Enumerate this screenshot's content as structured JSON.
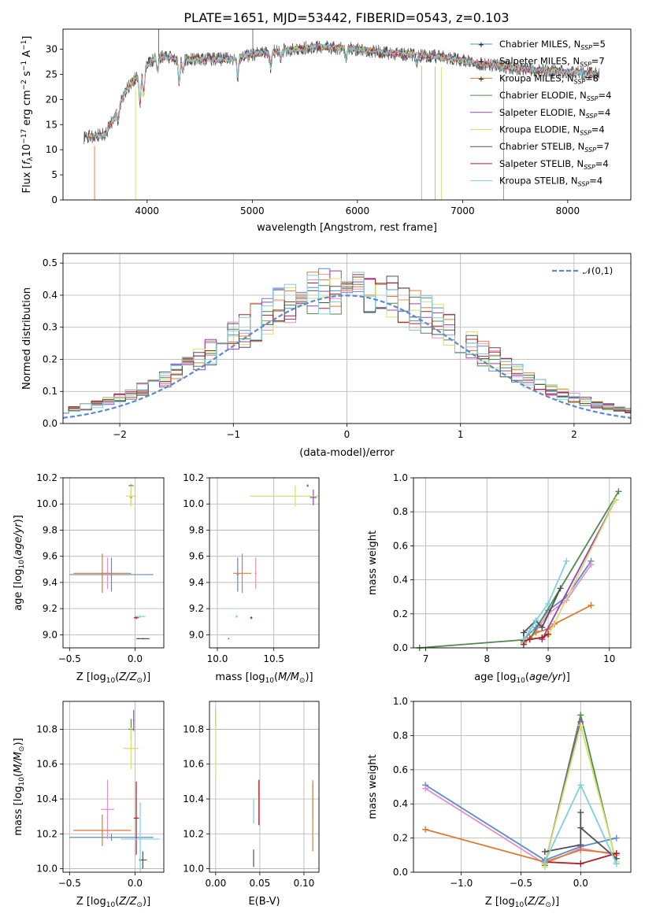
{
  "title": "PLATE=1651, MJD=53442, FIBERID=0543, z=0.103",
  "models": [
    {
      "label": "Chabrier MILES, N$_{SSP}$=5",
      "text": "Chabrier MILES, N",
      "sup": "SSP",
      "tail": "=5",
      "color": "#5a8ad0"
    },
    {
      "label": "Salpeter MILES, N$_{SSP}$=7",
      "text": "Salpeter MILES, N",
      "sup": "SSP",
      "tail": "=7",
      "color": "#e88fc6"
    },
    {
      "label": "Kroupa MILES, N$_{SSP}$=8",
      "text": "Kroupa MILES, N",
      "sup": "SSP",
      "tail": "=8",
      "color": "#e07a30"
    },
    {
      "label": "Chabrier ELODIE, N$_{SSP}$=4",
      "text": "Chabrier ELODIE, N",
      "sup": "SSP",
      "tail": "=4",
      "color": "#4f8a4f"
    },
    {
      "label": "Salpeter ELODIE, N$_{SSP}$=4",
      "text": "Salpeter ELODIE, N",
      "sup": "SSP",
      "tail": "=4",
      "color": "#9a3fbf"
    },
    {
      "label": "Kroupa ELODIE, N$_{SSP}$=4",
      "text": "Kroupa ELODIE, N",
      "sup": "SSP",
      "tail": "=4",
      "color": "#d4e06a"
    },
    {
      "label": "Chabrier STELIB, N$_{SSP}$=7",
      "text": "Chabrier STELIB, N",
      "sup": "SSP",
      "tail": "=7",
      "color": "#505050"
    },
    {
      "label": "Salpeter STELIB, N$_{SSP}$=4",
      "text": "Salpeter STELIB, N",
      "sup": "SSP",
      "tail": "=4",
      "color": "#b02020"
    },
    {
      "label": "Kroupa STELIB, N$_{SSP}$=4",
      "text": "Kroupa STELIB, N",
      "sup": "SSP",
      "tail": "=4",
      "color": "#7fd0dc"
    }
  ],
  "chart_data": [
    {
      "id": "spectrum",
      "type": "line",
      "xlabel": "wavelength [Angstrom, rest frame]",
      "ylabel": "Flux [f_λ 10^-17 erg cm^-2 s^-1 A^-1]",
      "xlim": [
        3200,
        8600
      ],
      "ylim": [
        0,
        34
      ],
      "xticks": [
        4000,
        5000,
        6000,
        7000,
        8000
      ],
      "yticks": [
        0,
        5,
        10,
        15,
        20,
        25,
        30
      ],
      "grid": false,
      "legend": "right",
      "continuum": [
        [
          3400,
          12.5
        ],
        [
          3600,
          13
        ],
        [
          3700,
          17
        ],
        [
          3800,
          22
        ],
        [
          3950,
          25.5
        ],
        [
          4000,
          27
        ],
        [
          4100,
          28.5
        ],
        [
          4400,
          28
        ],
        [
          4800,
          28
        ],
        [
          5000,
          29
        ],
        [
          5200,
          29.5
        ],
        [
          5600,
          30.5
        ],
        [
          6000,
          30
        ],
        [
          6400,
          29
        ],
        [
          6800,
          28.5
        ],
        [
          7200,
          27
        ],
        [
          7600,
          26
        ],
        [
          8000,
          25.5
        ],
        [
          8300,
          25
        ]
      ],
      "absorption_lines": [
        [
          3727,
          2.5
        ],
        [
          3933,
          6
        ],
        [
          3968,
          5
        ],
        [
          4101,
          3
        ],
        [
          4304,
          5
        ],
        [
          4340,
          3
        ],
        [
          4861,
          4
        ],
        [
          5175,
          3
        ],
        [
          5270,
          1.5
        ],
        [
          5890,
          2
        ],
        [
          6563,
          2
        ]
      ],
      "spikes": [
        [
          4110,
          34.5
        ],
        [
          5005,
          34.5
        ],
        [
          6563,
          29.5
        ]
      ],
      "dropouts": [
        [
          3500,
          0
        ],
        [
          3890,
          0
        ],
        [
          6610,
          0
        ],
        [
          6740,
          0
        ],
        [
          6800,
          0
        ],
        [
          7390,
          0
        ]
      ]
    },
    {
      "id": "residuals",
      "type": "histogram",
      "xlabel": "(data-model)/error",
      "ylabel": "Normed distribution",
      "xlim": [
        -2.5,
        2.5
      ],
      "ylim": [
        0,
        0.53
      ],
      "xticks": [
        -2,
        -1,
        0,
        1,
        2
      ],
      "yticks": [
        0.0,
        0.1,
        0.2,
        0.3,
        0.4,
        0.5
      ],
      "grid": true,
      "legend": "top-right",
      "reference": {
        "label": "𝒩(0,1)",
        "mean": 0,
        "sigma": 1
      },
      "bin_width": 0.1
    },
    {
      "id": "age-vs-Z",
      "type": "errorbar",
      "xlabel": "Z [log10(Z/Z☉)]",
      "ylabel": "age  [log10(age/yr)]",
      "xlim": [
        -0.55,
        0.22
      ],
      "ylim": [
        8.9,
        10.2
      ],
      "xticks": [
        -0.5,
        0.0
      ],
      "yticks": [
        9.0,
        9.2,
        9.4,
        9.6,
        9.8,
        10.0,
        10.2
      ],
      "grid": true,
      "points": [
        {
          "x": -0.18,
          "xerr": 0.32,
          "y": 9.46,
          "yerr": 0.13
        },
        {
          "x": -0.21,
          "xerr": 0.05,
          "y": 9.47,
          "yerr": 0.12
        },
        {
          "x": -0.25,
          "xerr": 0.22,
          "y": 9.47,
          "yerr": 0.15
        },
        {
          "x": -0.03,
          "xerr": 0.02,
          "y": 10.14,
          "yerr": 0.01
        },
        {
          "x": -0.03,
          "xerr": 0.01,
          "y": 10.05,
          "yerr": 0.06
        },
        {
          "x": -0.03,
          "xerr": 0.04,
          "y": 10.06,
          "yerr": 0.08
        },
        {
          "x": 0.06,
          "xerr": 0.05,
          "y": 8.97,
          "yerr": 0.005
        },
        {
          "x": 0.01,
          "xerr": 0.02,
          "y": 9.13,
          "yerr": 0.01
        },
        {
          "x": 0.04,
          "xerr": 0.04,
          "y": 9.14,
          "yerr": 0.01
        }
      ]
    },
    {
      "id": "age-vs-mass",
      "type": "errorbar",
      "xlabel": "mass [log10(M/M☉)]",
      "ylabel": "",
      "xlim": [
        9.93,
        10.9
      ],
      "ylim": [
        8.9,
        10.2
      ],
      "xticks": [
        10.0,
        10.5
      ],
      "yticks": [
        9.0,
        9.2,
        9.4,
        9.6,
        9.8,
        10.0,
        10.2
      ],
      "grid": true,
      "points": [
        {
          "x": 10.18,
          "xerr": 0.01,
          "y": 9.46,
          "yerr": 0.13
        },
        {
          "x": 10.34,
          "xerr": 0.01,
          "y": 9.47,
          "yerr": 0.12
        },
        {
          "x": 10.22,
          "xerr": 0.08,
          "y": 9.47,
          "yerr": 0.15
        },
        {
          "x": 10.8,
          "xerr": 0.01,
          "y": 10.14,
          "yerr": 0.01
        },
        {
          "x": 10.85,
          "xerr": 0.03,
          "y": 10.05,
          "yerr": 0.06
        },
        {
          "x": 10.69,
          "xerr": 0.4,
          "y": 10.06,
          "yerr": 0.08
        },
        {
          "x": 10.1,
          "xerr": 0.005,
          "y": 8.97,
          "yerr": 0.005
        },
        {
          "x": 10.3,
          "xerr": 0.01,
          "y": 9.13,
          "yerr": 0.01
        },
        {
          "x": 10.17,
          "xerr": 0.01,
          "y": 9.14,
          "yerr": 0.01
        }
      ]
    },
    {
      "id": "weight-vs-age",
      "type": "line",
      "xlabel": "age  [log10(age/yr)]",
      "ylabel": "mass weight",
      "xlim": [
        6.8,
        10.35
      ],
      "ylim": [
        0,
        1.0
      ],
      "xticks": [
        7,
        8,
        9,
        10
      ],
      "yticks": [
        0.0,
        0.2,
        0.4,
        0.6,
        0.8,
        1.0
      ],
      "grid": true,
      "series": [
        {
          "x": [
            8.6,
            8.8,
            9.0,
            9.3,
            9.7
          ],
          "y": [
            0.05,
            0.12,
            0.22,
            0.3,
            0.51
          ]
        },
        {
          "x": [
            8.6,
            8.8,
            9.0,
            9.3,
            9.7
          ],
          "y": [
            0.02,
            0.1,
            0.2,
            0.28,
            0.49
          ]
        },
        {
          "x": [
            8.6,
            8.7,
            8.8,
            9.0,
            9.1,
            9.7
          ],
          "y": [
            0.03,
            0.06,
            0.09,
            0.11,
            0.14,
            0.25
          ]
        },
        {
          "x": [
            6.9,
            8.7,
            10.15
          ],
          "y": [
            0.0,
            0.05,
            0.92
          ]
        },
        {
          "x": [
            8.9,
            10.1
          ],
          "y": [
            0.05,
            0.87
          ]
        },
        {
          "x": [
            8.7,
            9.0,
            10.1
          ],
          "y": [
            0.05,
            0.07,
            0.87
          ]
        },
        {
          "x": [
            8.6,
            8.6,
            8.8,
            8.9,
            9.2
          ],
          "y": [
            0.02,
            0.09,
            0.16,
            0.12,
            0.35
          ]
        },
        {
          "x": [
            8.6,
            8.7,
            8.9,
            9.0
          ],
          "y": [
            0.04,
            0.05,
            0.06,
            0.08
          ]
        },
        {
          "x": [
            8.6,
            8.7,
            8.8,
            9.0,
            9.3
          ],
          "y": [
            0.05,
            0.1,
            0.16,
            0.26,
            0.51
          ]
        }
      ]
    },
    {
      "id": "mass-vs-Z",
      "type": "errorbar",
      "xlabel": "Z [log10(Z/Z☉)]",
      "ylabel": "mass [log10(M/M☉)]",
      "xlim": [
        -0.55,
        0.22
      ],
      "ylim": [
        9.98,
        10.96
      ],
      "xticks": [
        -0.5,
        0.0
      ],
      "yticks": [
        10.0,
        10.2,
        10.4,
        10.6,
        10.8
      ],
      "grid": true,
      "points": [
        {
          "x": -0.18,
          "xerr": 0.32,
          "y": 10.18,
          "yerr": 0.02
        },
        {
          "x": -0.21,
          "xerr": 0.05,
          "y": 10.34,
          "yerr": 0.17
        },
        {
          "x": -0.25,
          "xerr": 0.22,
          "y": 10.22,
          "yerr": 0.09
        },
        {
          "x": -0.03,
          "xerr": 0.02,
          "y": 10.8,
          "yerr": 0.06
        },
        {
          "x": -0.01,
          "xerr": 0.005,
          "y": 10.85,
          "yerr": 0.06
        },
        {
          "x": -0.03,
          "xerr": 0.06,
          "y": 10.69,
          "yerr": 0.12
        },
        {
          "x": 0.06,
          "xerr": 0.03,
          "y": 10.05,
          "yerr": 0.05
        },
        {
          "x": 0.01,
          "xerr": 0.02,
          "y": 10.29,
          "yerr": 0.21
        },
        {
          "x": 0.04,
          "xerr": 0.15,
          "y": 10.17,
          "yerr": 0.21
        }
      ]
    },
    {
      "id": "mass-vs-ebv",
      "type": "errorbar",
      "xlabel": "E(B-V)",
      "ylabel": "",
      "xlim": [
        -0.007,
        0.117
      ],
      "ylim": [
        9.98,
        10.96
      ],
      "xticks": [
        0.0,
        0.05,
        0.1
      ],
      "yticks": [
        10.0,
        10.2,
        10.4,
        10.6,
        10.8
      ],
      "grid": true,
      "points": [
        {
          "x": 0.0,
          "xerr": 0,
          "y": 10.87,
          "yerr": 0.05
        },
        {
          "x": 0.0,
          "xerr": 0,
          "y": 10.72,
          "yerr": 0.2
        },
        {
          "x": 0.043,
          "xerr": 0,
          "y": 10.06,
          "yerr": 0.05
        },
        {
          "x": 0.043,
          "xerr": 0,
          "y": 10.33,
          "yerr": 0.07
        },
        {
          "x": 0.049,
          "xerr": 0,
          "y": 10.38,
          "yerr": 0.13
        },
        {
          "x": 0.11,
          "xerr": 0,
          "y": 10.4,
          "yerr": 0.11
        },
        {
          "x": 0.11,
          "xerr": 0,
          "y": 10.3,
          "yerr": 0.2
        }
      ]
    },
    {
      "id": "weight-vs-Z",
      "type": "line",
      "xlabel": "Z [log10(Z/Z☉)]",
      "ylabel": "mass weight",
      "xlim": [
        -1.4,
        0.42
      ],
      "ylim": [
        0,
        1.0
      ],
      "xticks": [
        -1.0,
        -0.5,
        0.0
      ],
      "yticks": [
        0.0,
        0.2,
        0.4,
        0.6,
        0.8,
        1.0
      ],
      "grid": true,
      "series": [
        {
          "x": [
            -1.3,
            -0.3,
            0.0,
            0.3
          ],
          "y": [
            0.51,
            0.07,
            0.15,
            0.2
          ]
        },
        {
          "x": [
            -1.3,
            -0.3,
            0.0,
            0.3
          ],
          "y": [
            0.49,
            0.05,
            0.14,
            0.1
          ]
        },
        {
          "x": [
            -1.3,
            -0.3,
            0.0,
            0.3
          ],
          "y": [
            0.25,
            0.06,
            0.13,
            0.11
          ]
        },
        {
          "x": [
            -0.3,
            0.0,
            0.3
          ],
          "y": [
            0.04,
            0.92,
            0.05
          ]
        },
        {
          "x": [
            -0.3,
            0.0
          ],
          "y": [
            0.05,
            0.88
          ]
        },
        {
          "x": [
            -0.3,
            -0.3,
            0.0,
            0.3
          ],
          "y": [
            0.03,
            0.05,
            0.86,
            0.06
          ]
        },
        {
          "x": [
            -0.3,
            0.0,
            0.0,
            0.0,
            0.3
          ],
          "y": [
            0.12,
            0.16,
            0.35,
            0.26,
            0.08
          ]
        },
        {
          "x": [
            -0.3,
            0.0,
            0.3
          ],
          "y": [
            0.06,
            0.05,
            0.11
          ]
        },
        {
          "x": [
            -0.3,
            0.0,
            0.3
          ],
          "y": [
            0.06,
            0.51,
            0.05
          ]
        }
      ]
    }
  ]
}
